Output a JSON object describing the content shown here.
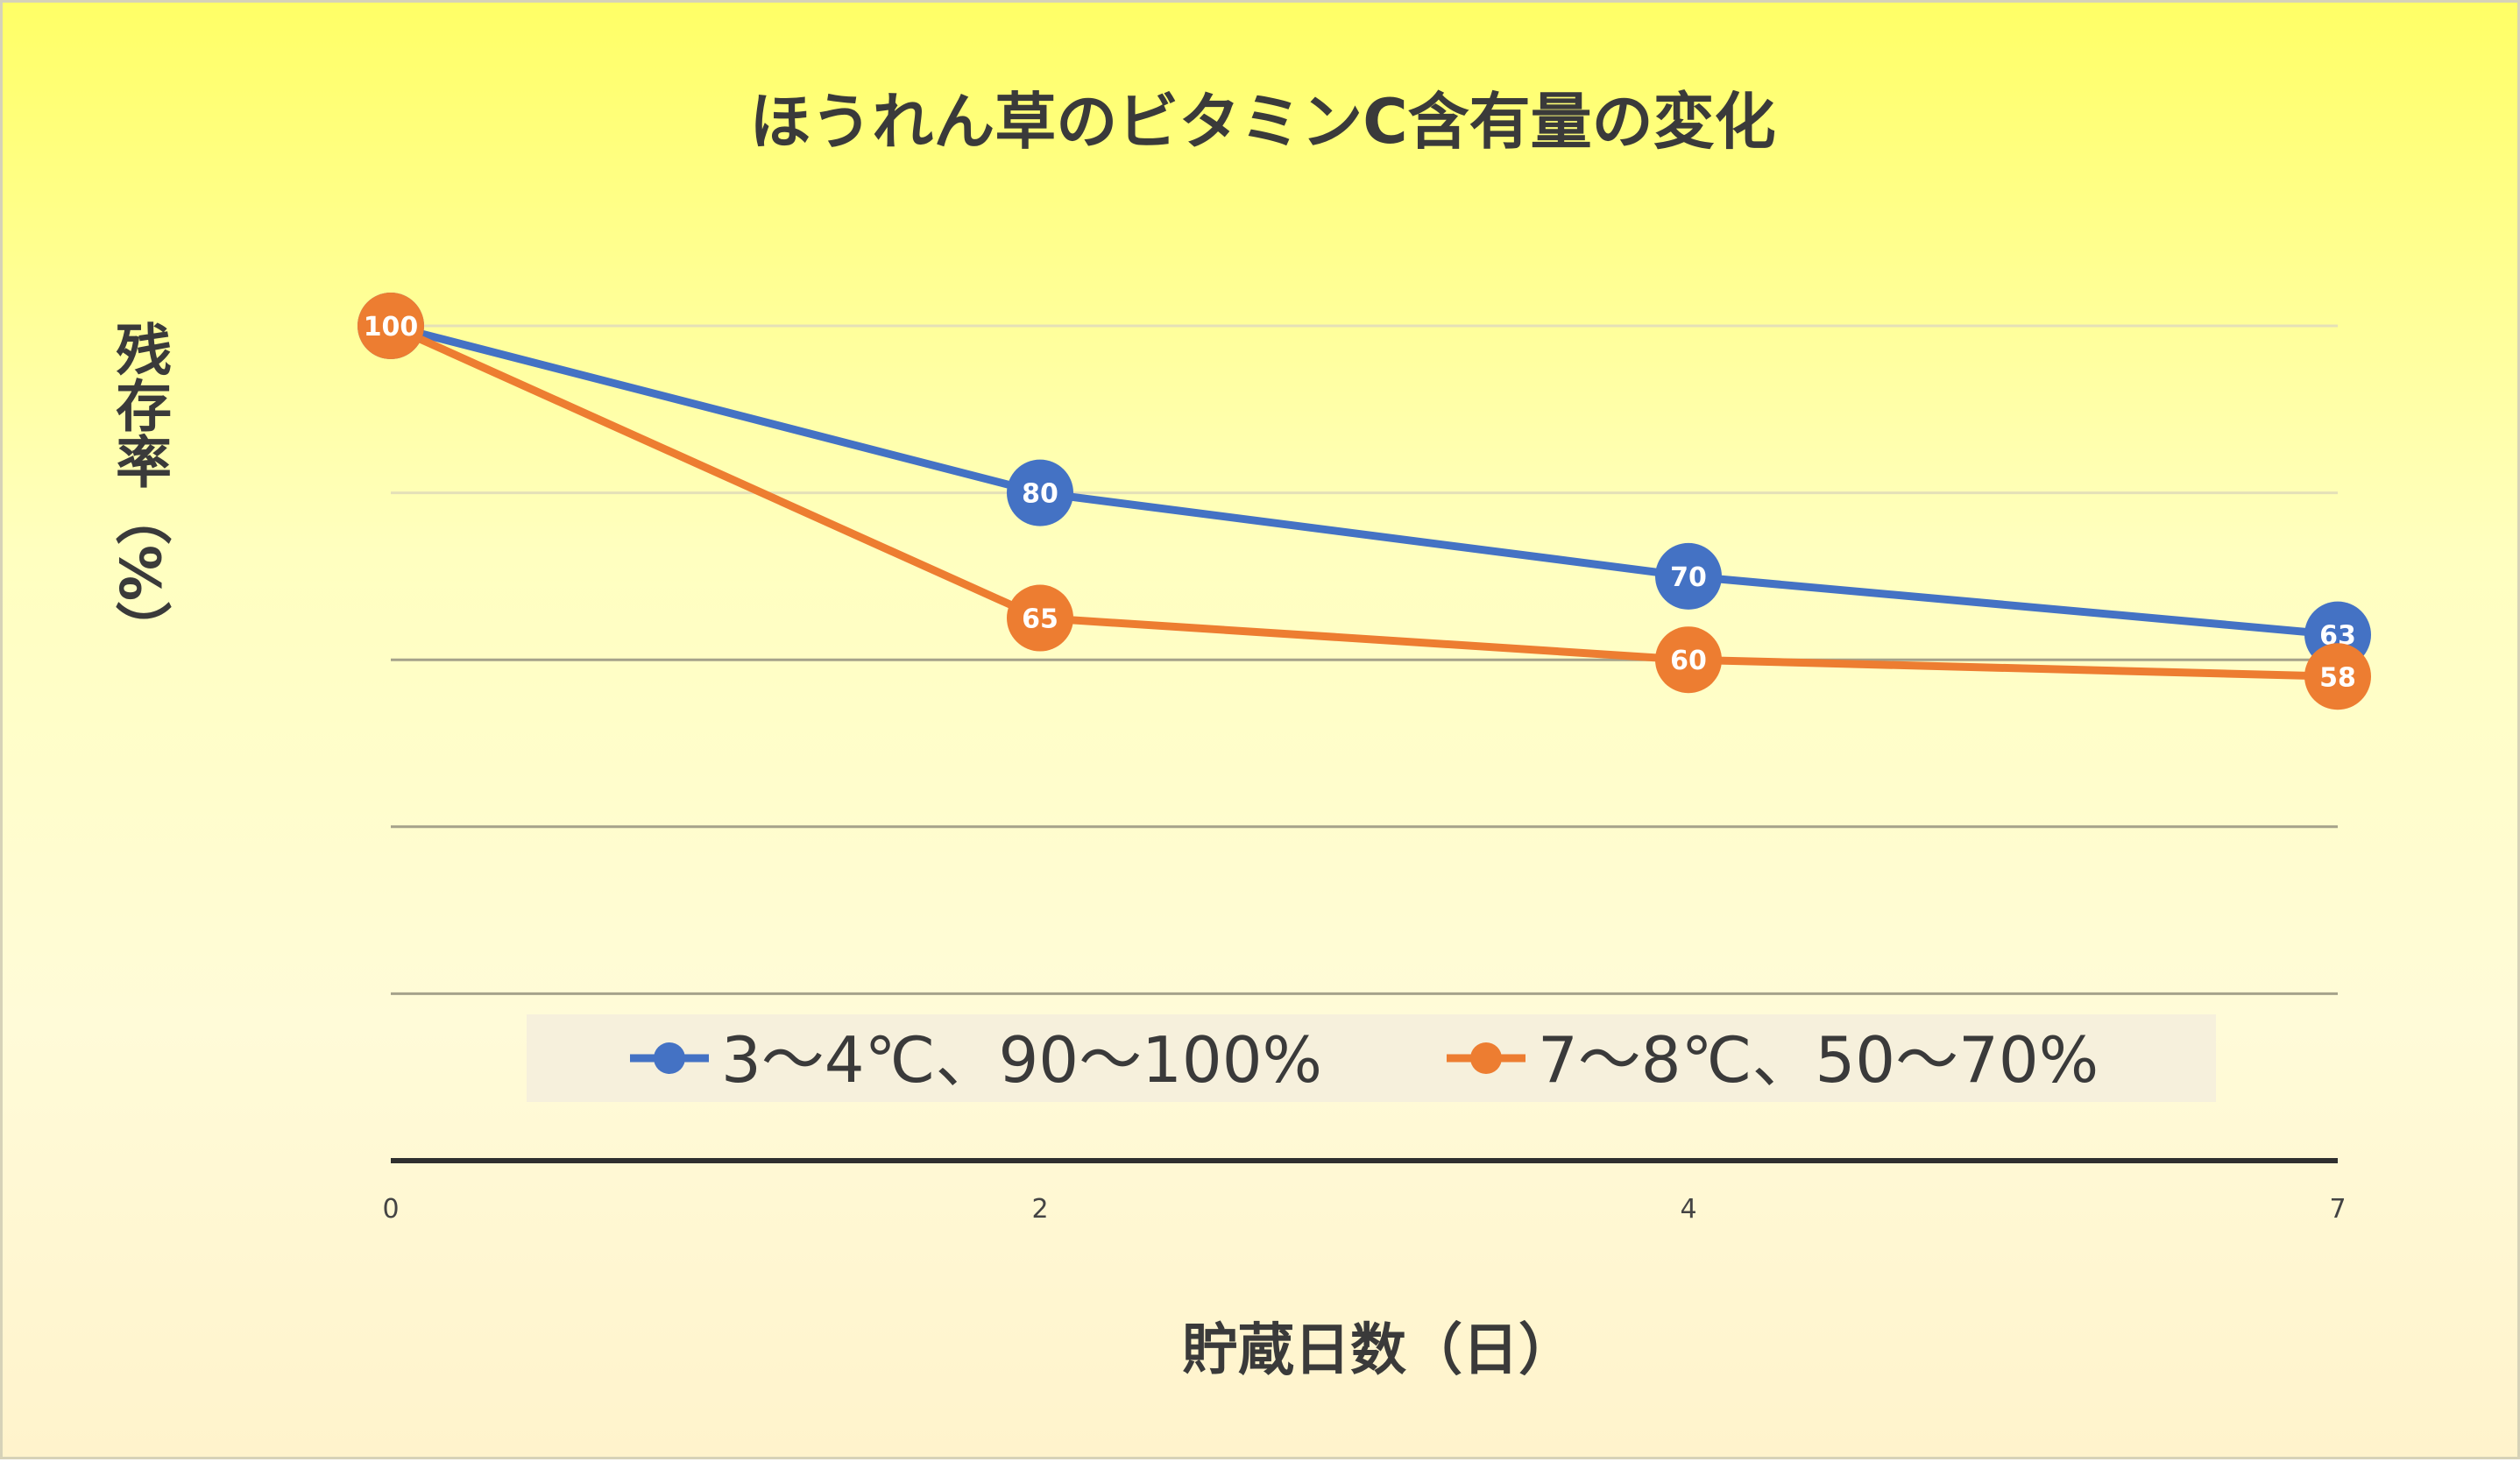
{
  "chart_data": {
    "type": "line",
    "title": "ほうれん草のビタミンC含有量の変化",
    "xlabel": "貯蔵日数（日）",
    "ylabel": "残存率（%）",
    "x": [
      0,
      2,
      4,
      7
    ],
    "categories": [
      "0",
      "2",
      "4",
      "7"
    ],
    "ylim": [
      0,
      100
    ],
    "gridlines_y": [
      20,
      40,
      60,
      80,
      100
    ],
    "grid": true,
    "legend_position": "bottom",
    "series": [
      {
        "name": "3〜4℃、90〜100%",
        "color": "#4472c4",
        "values": [
          100,
          80,
          70,
          63
        ],
        "labels": [
          "100",
          "80",
          "70",
          "63"
        ]
      },
      {
        "name": "7〜8℃、50〜70%",
        "color": "#ed7d31",
        "values": [
          100,
          65,
          60,
          58
        ],
        "labels": [
          "100",
          "65",
          "60",
          "58"
        ]
      }
    ]
  }
}
